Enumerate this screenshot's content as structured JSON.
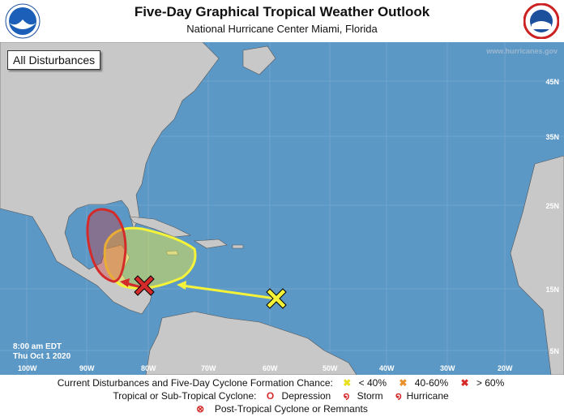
{
  "header": {
    "title": "Five-Day Graphical Tropical Weather Outlook",
    "subtitle": "National Hurricane Center  Miami, Florida",
    "logo_left": "NOAA",
    "logo_right": "National Weather Service"
  },
  "map": {
    "badge": "All Disturbances",
    "url": "www.hurricanes.gov",
    "latitudes": [
      "45N",
      "35N",
      "25N",
      "15N",
      "5N"
    ],
    "longitudes": [
      "100W",
      "90W",
      "80W",
      "70W",
      "60W",
      "50W",
      "40W",
      "30W",
      "20W"
    ],
    "timestamp_time": "8:00 am EDT",
    "timestamp_date": "Thu Oct 1 2020",
    "disturbances": [
      {
        "chance": "> 60%",
        "color": "#d42a2a",
        "marker": "x-icon"
      },
      {
        "chance": "< 40%",
        "color": "#f5f23a",
        "marker": "x-icon"
      }
    ],
    "colors": {
      "ocean": "#5b98c6",
      "land": "#c8c8c8",
      "high": "#d42a2a",
      "low": "#f5f23a"
    }
  },
  "legend": {
    "row1_label": "Current Disturbances and Five-Day Cyclone Formation Chance:",
    "low": "< 40%",
    "medium": "40-60%",
    "high": "> 60%",
    "row2_label": "Tropical or Sub-Tropical Cyclone:",
    "depression": "Depression",
    "storm": "Storm",
    "hurricane": "Hurricane",
    "post_tropical": "Post-Tropical Cyclone or Remnants"
  }
}
